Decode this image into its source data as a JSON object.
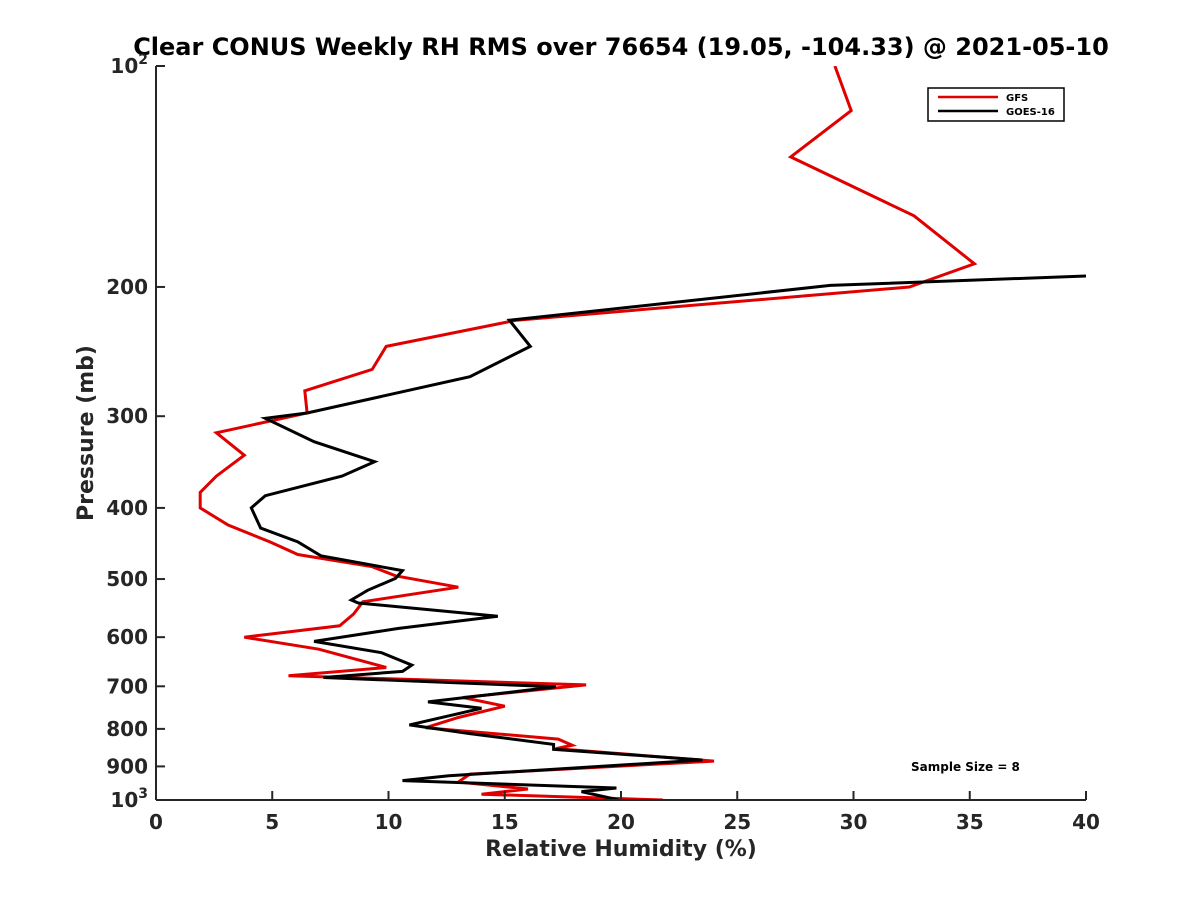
{
  "chart_data": {
    "type": "line",
    "title": "Clear CONUS Weekly RH RMS over 76654 (19.05, -104.33) @ 2021-05-10",
    "xlabel": "Relative Humidity (%)",
    "ylabel": "Pressure (mb)",
    "xlim": [
      0,
      40
    ],
    "ylim": [
      100,
      1000
    ],
    "y_scale": "log",
    "y_reversed": true,
    "x_ticks": [
      0,
      5,
      10,
      15,
      20,
      25,
      30,
      35,
      40
    ],
    "x_tick_labels": [
      "0",
      "5",
      "10",
      "15",
      "20",
      "25",
      "30",
      "35",
      "40"
    ],
    "y_ticks": [
      {
        "value": 100,
        "base": "10",
        "exp": "2"
      },
      {
        "value": 200,
        "label": "200"
      },
      {
        "value": 300,
        "label": "300"
      },
      {
        "value": 400,
        "label": "400"
      },
      {
        "value": 500,
        "label": "500"
      },
      {
        "value": 600,
        "label": "600"
      },
      {
        "value": 700,
        "label": "700"
      },
      {
        "value": 800,
        "label": "800"
      },
      {
        "value": 900,
        "label": "900"
      },
      {
        "value": 1000,
        "base": "10",
        "exp": "3"
      }
    ],
    "legend_position": "top-right",
    "annotation": "Sample Size = 8",
    "series": [
      {
        "name": "GFS",
        "color": "#e00000",
        "points": [
          [
            29.2,
            100
          ],
          [
            29.9,
            115
          ],
          [
            27.3,
            133
          ],
          [
            32.6,
            160
          ],
          [
            35.2,
            186
          ],
          [
            32.4,
            200
          ],
          [
            15.5,
            222
          ],
          [
            9.9,
            241
          ],
          [
            9.3,
            259
          ],
          [
            6.4,
            277
          ],
          [
            6.5,
            297
          ],
          [
            2.6,
            316
          ],
          [
            3.8,
            339
          ],
          [
            2.6,
            362
          ],
          [
            1.9,
            381
          ],
          [
            1.9,
            400
          ],
          [
            3.1,
            422
          ],
          [
            4.9,
            445
          ],
          [
            6.1,
            463
          ],
          [
            9.3,
            481
          ],
          [
            10.3,
            495
          ],
          [
            13.0,
            513
          ],
          [
            8.9,
            537
          ],
          [
            8.5,
            558
          ],
          [
            7.9,
            579
          ],
          [
            3.8,
            600
          ],
          [
            7.0,
            623
          ],
          [
            9.9,
            660
          ],
          [
            5.7,
            677
          ],
          [
            18.5,
            697
          ],
          [
            13.2,
            725
          ],
          [
            15.0,
            745
          ],
          [
            13.0,
            772
          ],
          [
            11.6,
            797
          ],
          [
            17.3,
            826
          ],
          [
            17.9,
            842
          ],
          [
            17.2,
            851
          ],
          [
            24.0,
            885
          ],
          [
            13.5,
            922
          ],
          [
            13.0,
            945
          ],
          [
            16.0,
            966
          ],
          [
            14.0,
            982
          ],
          [
            21.8,
            1000
          ]
        ]
      },
      {
        "name": "GOES-16",
        "color": "#000000",
        "points": [
          [
            40.5,
            193
          ],
          [
            29.0,
            199
          ],
          [
            15.2,
            222
          ],
          [
            16.1,
            241
          ],
          [
            13.5,
            265
          ],
          [
            6.5,
            297
          ],
          [
            4.7,
            302
          ],
          [
            6.8,
            325
          ],
          [
            9.4,
            346
          ],
          [
            8.0,
            362
          ],
          [
            4.7,
            385
          ],
          [
            4.1,
            400
          ],
          [
            4.5,
            426
          ],
          [
            6.1,
            445
          ],
          [
            7.1,
            465
          ],
          [
            10.6,
            487
          ],
          [
            10.3,
            499
          ],
          [
            9.1,
            518
          ],
          [
            8.4,
            534
          ],
          [
            8.7,
            539
          ],
          [
            14.7,
            562
          ],
          [
            10.4,
            584
          ],
          [
            6.8,
            608
          ],
          [
            9.7,
            630
          ],
          [
            11.0,
            655
          ],
          [
            10.6,
            668
          ],
          [
            7.2,
            681
          ],
          [
            17.2,
            701
          ],
          [
            11.7,
            735
          ],
          [
            14.0,
            750
          ],
          [
            10.9,
            790
          ],
          [
            13.5,
            812
          ],
          [
            17.1,
            840
          ],
          [
            17.1,
            853
          ],
          [
            23.5,
            882
          ],
          [
            12.6,
            927
          ],
          [
            10.6,
            941
          ],
          [
            19.8,
            963
          ],
          [
            18.3,
            974
          ],
          [
            19.9,
            1000
          ]
        ]
      }
    ]
  }
}
